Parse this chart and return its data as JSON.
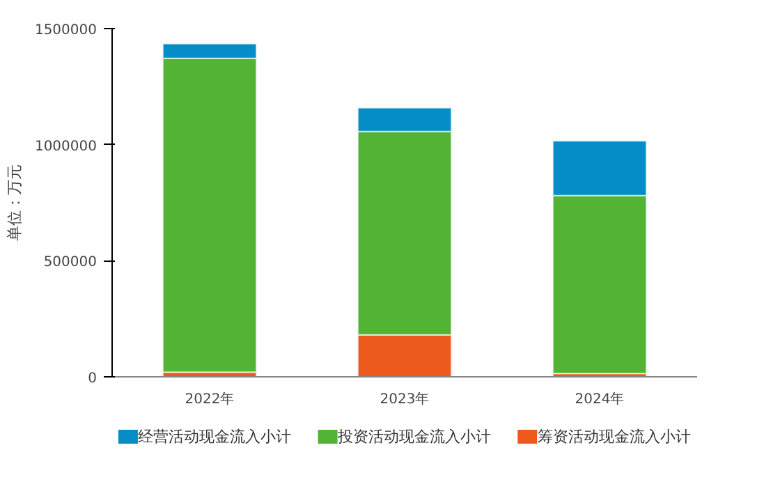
{
  "chart_data": {
    "type": "bar",
    "stacked": true,
    "ylabel": "单位：万元",
    "categories": [
      "2022年",
      "2023年",
      "2024年"
    ],
    "series": [
      {
        "name": "筹资活动现金流入小计",
        "color": "#ee5a1e",
        "values": [
          20000,
          181000,
          14000
        ]
      },
      {
        "name": "投资活动现金流入小计",
        "color": "#53b334",
        "values": [
          1352000,
          876000,
          767000
        ]
      },
      {
        "name": "经营活动现金流入小计",
        "color": "#058dc7",
        "values": [
          63000,
          102000,
          235000
        ]
      }
    ],
    "ylim": [
      0,
      1500000
    ],
    "yticks": [
      0,
      500000,
      1000000,
      1500000
    ],
    "grid": false,
    "legend": "bottom"
  }
}
